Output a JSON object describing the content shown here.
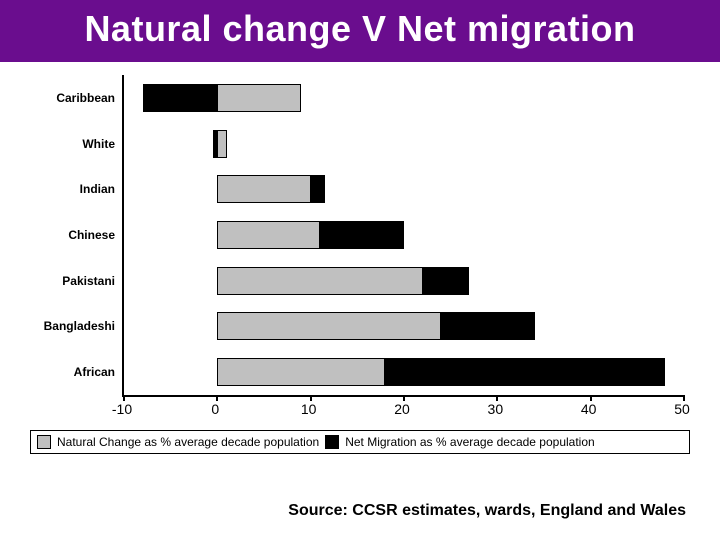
{
  "title": {
    "text": "Natural change V Net migration",
    "bg_color": "#6a0d8e",
    "text_color": "#ffffff",
    "font_size_pt": 28
  },
  "chart": {
    "type": "bar",
    "orientation": "horizontal",
    "stacked": true,
    "xlim": [
      -10,
      50
    ],
    "xticks": [
      -10,
      0,
      10,
      20,
      30,
      40,
      50
    ],
    "background_color": "#ffffff",
    "axis_color": "#000000",
    "label_fontsize": 12,
    "tick_fontsize": 14,
    "series": [
      {
        "name": "Natural Change as % average decade population",
        "color": "#c0c0c0"
      },
      {
        "name": "Net Migration as % average decade population",
        "color": "#000000"
      }
    ],
    "categories": [
      {
        "label": "Caribbean",
        "a_start": 0,
        "a_len": 9,
        "b_start": -8,
        "b_len": 8
      },
      {
        "label": "White",
        "a_start": 0,
        "a_len": 1,
        "b_start": -0.5,
        "b_len": 0.5
      },
      {
        "label": "Indian",
        "a_start": 0,
        "a_len": 10,
        "b_start": 10,
        "b_len": 1.5
      },
      {
        "label": "Chinese",
        "a_start": 0,
        "a_len": 11,
        "b_start": 11,
        "b_len": 9
      },
      {
        "label": "Pakistani",
        "a_start": 0,
        "a_len": 22,
        "b_start": 22,
        "b_len": 5
      },
      {
        "label": "Bangladeshi",
        "a_start": 0,
        "a_len": 24,
        "b_start": 24,
        "b_len": 10
      },
      {
        "label": "African",
        "a_start": 0,
        "a_len": 18,
        "b_start": 18,
        "b_len": 30
      }
    ]
  },
  "legend": {
    "a_label": "Natural Change as % average decade population",
    "b_label": "Net Migration as % average decade population"
  },
  "source": "Source: CCSR estimates, wards, England and Wales"
}
